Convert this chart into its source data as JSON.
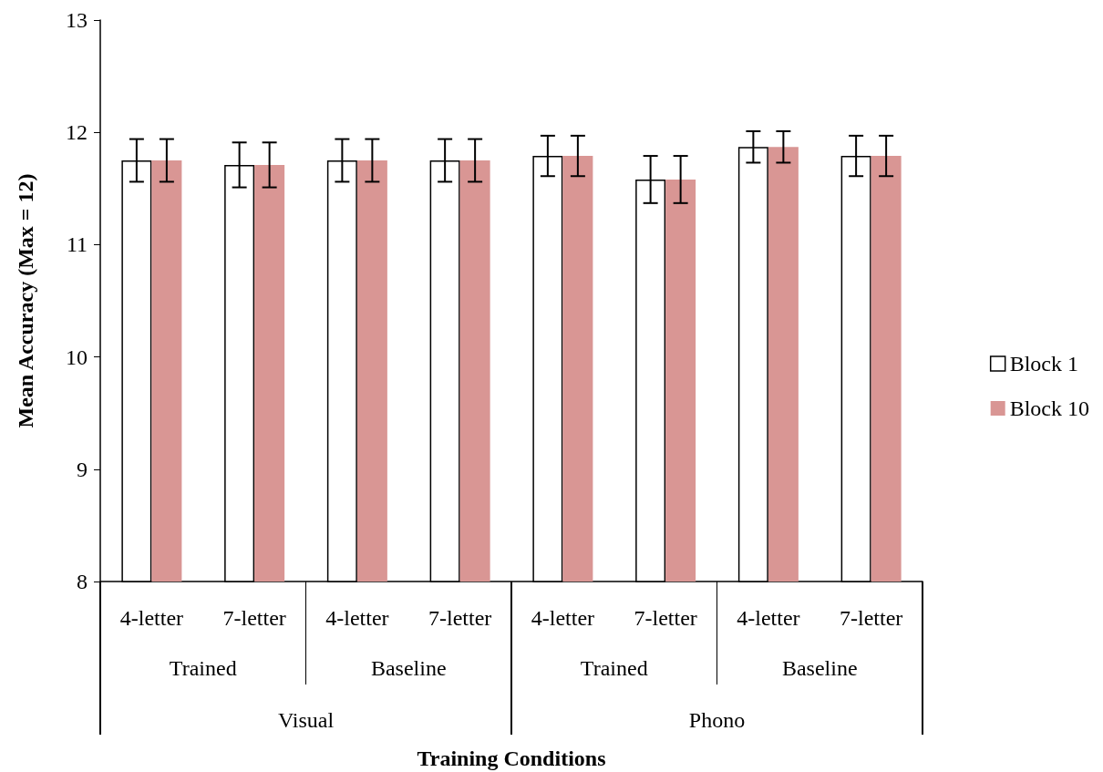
{
  "chart_data": {
    "type": "bar",
    "ylabel": "Mean Accuracy (Max = 12)",
    "categories": [
      "4-letter",
      "7-letter",
      "4-letter",
      "7-letter",
      "4-letter",
      "7-letter",
      "4-letter",
      "7-letter"
    ],
    "annotations": [
      "Trained",
      "Baseline",
      "Trained",
      "Baseline",
      "Visual",
      "Phono",
      "Training Conditions"
    ],
    "series": [
      {
        "name": "Block 1",
        "color": "#ffffff",
        "values": [
          11.75,
          11.71,
          11.75,
          11.75,
          11.79,
          11.58,
          11.87,
          11.79
        ],
        "errors": [
          0.19,
          0.2,
          0.19,
          0.19,
          0.18,
          0.21,
          0.14,
          0.18
        ]
      },
      {
        "name": "Block 10",
        "color": "#d99694",
        "values": [
          11.75,
          11.71,
          11.75,
          11.75,
          11.79,
          11.58,
          11.87,
          11.79
        ],
        "errors": [
          0.19,
          0.2,
          0.19,
          0.19,
          0.18,
          0.21,
          0.14,
          0.18
        ]
      }
    ],
    "ylim": [
      8,
      13
    ],
    "yticks": [
      8,
      9,
      10,
      11,
      12,
      13
    ],
    "grid": false,
    "legend": "right"
  }
}
